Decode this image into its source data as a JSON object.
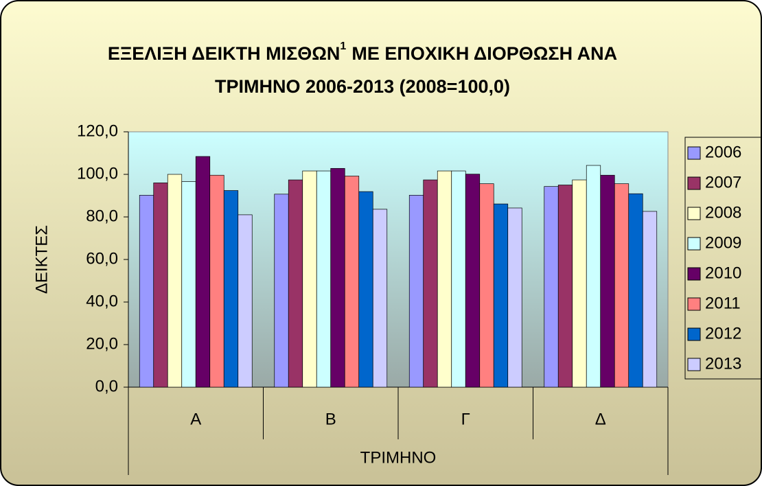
{
  "chart_data": {
    "type": "bar",
    "title": {
      "line1": "ΕΞΕΛΙΞΗ ΔΕΙΚΤΗ ΜΙΣΘΩΝ",
      "footnote_mark": "1",
      "line1_end": "ΜΕ ΕΠΟΧΙΚΗ ΔΙΟΡΘΩΣΗ ΑΝΑ",
      "line2": "ΤΡΙΜΗΝΟ 2006-2013 (2008=100,0)"
    },
    "x_label": "ΤΡΙΜΗΝΟ",
    "y_label": "ΔΕΙΚΤΕΣ",
    "categories": [
      "Α",
      "Β",
      "Γ",
      "Δ"
    ],
    "series": [
      {
        "name": "2006",
        "color": "#9999ff",
        "values": [
          90.2,
          90.7,
          90.2,
          94.3
        ]
      },
      {
        "name": "2007",
        "color": "#993366",
        "values": [
          96.0,
          97.4,
          97.4,
          95.0
        ]
      },
      {
        "name": "2008",
        "color": "#ffffcc",
        "values": [
          100.0,
          101.6,
          101.6,
          97.4
        ]
      },
      {
        "name": "2009",
        "color": "#ccffff",
        "values": [
          96.6,
          101.6,
          101.6,
          104.2
        ]
      },
      {
        "name": "2010",
        "color": "#660066",
        "values": [
          108.4,
          102.8,
          100.1,
          99.6
        ]
      },
      {
        "name": "2011",
        "color": "#ff8080",
        "values": [
          99.6,
          99.2,
          95.6,
          95.6
        ]
      },
      {
        "name": "2012",
        "color": "#0066cc",
        "values": [
          92.4,
          91.9,
          86.1,
          90.9
        ]
      },
      {
        "name": "2013",
        "color": "#ccccff",
        "values": [
          81.0,
          83.6,
          84.2,
          82.6
        ]
      }
    ],
    "ylim": [
      0,
      120
    ],
    "yticks": [
      {
        "value": 0,
        "label": "0,0"
      },
      {
        "value": 20,
        "label": "20,0"
      },
      {
        "value": 40,
        "label": "40,0"
      },
      {
        "value": 60,
        "label": "60,0"
      },
      {
        "value": 80,
        "label": "80,0"
      },
      {
        "value": 100,
        "label": "100,0"
      },
      {
        "value": 120,
        "label": "120,0"
      }
    ],
    "legend": "right"
  }
}
